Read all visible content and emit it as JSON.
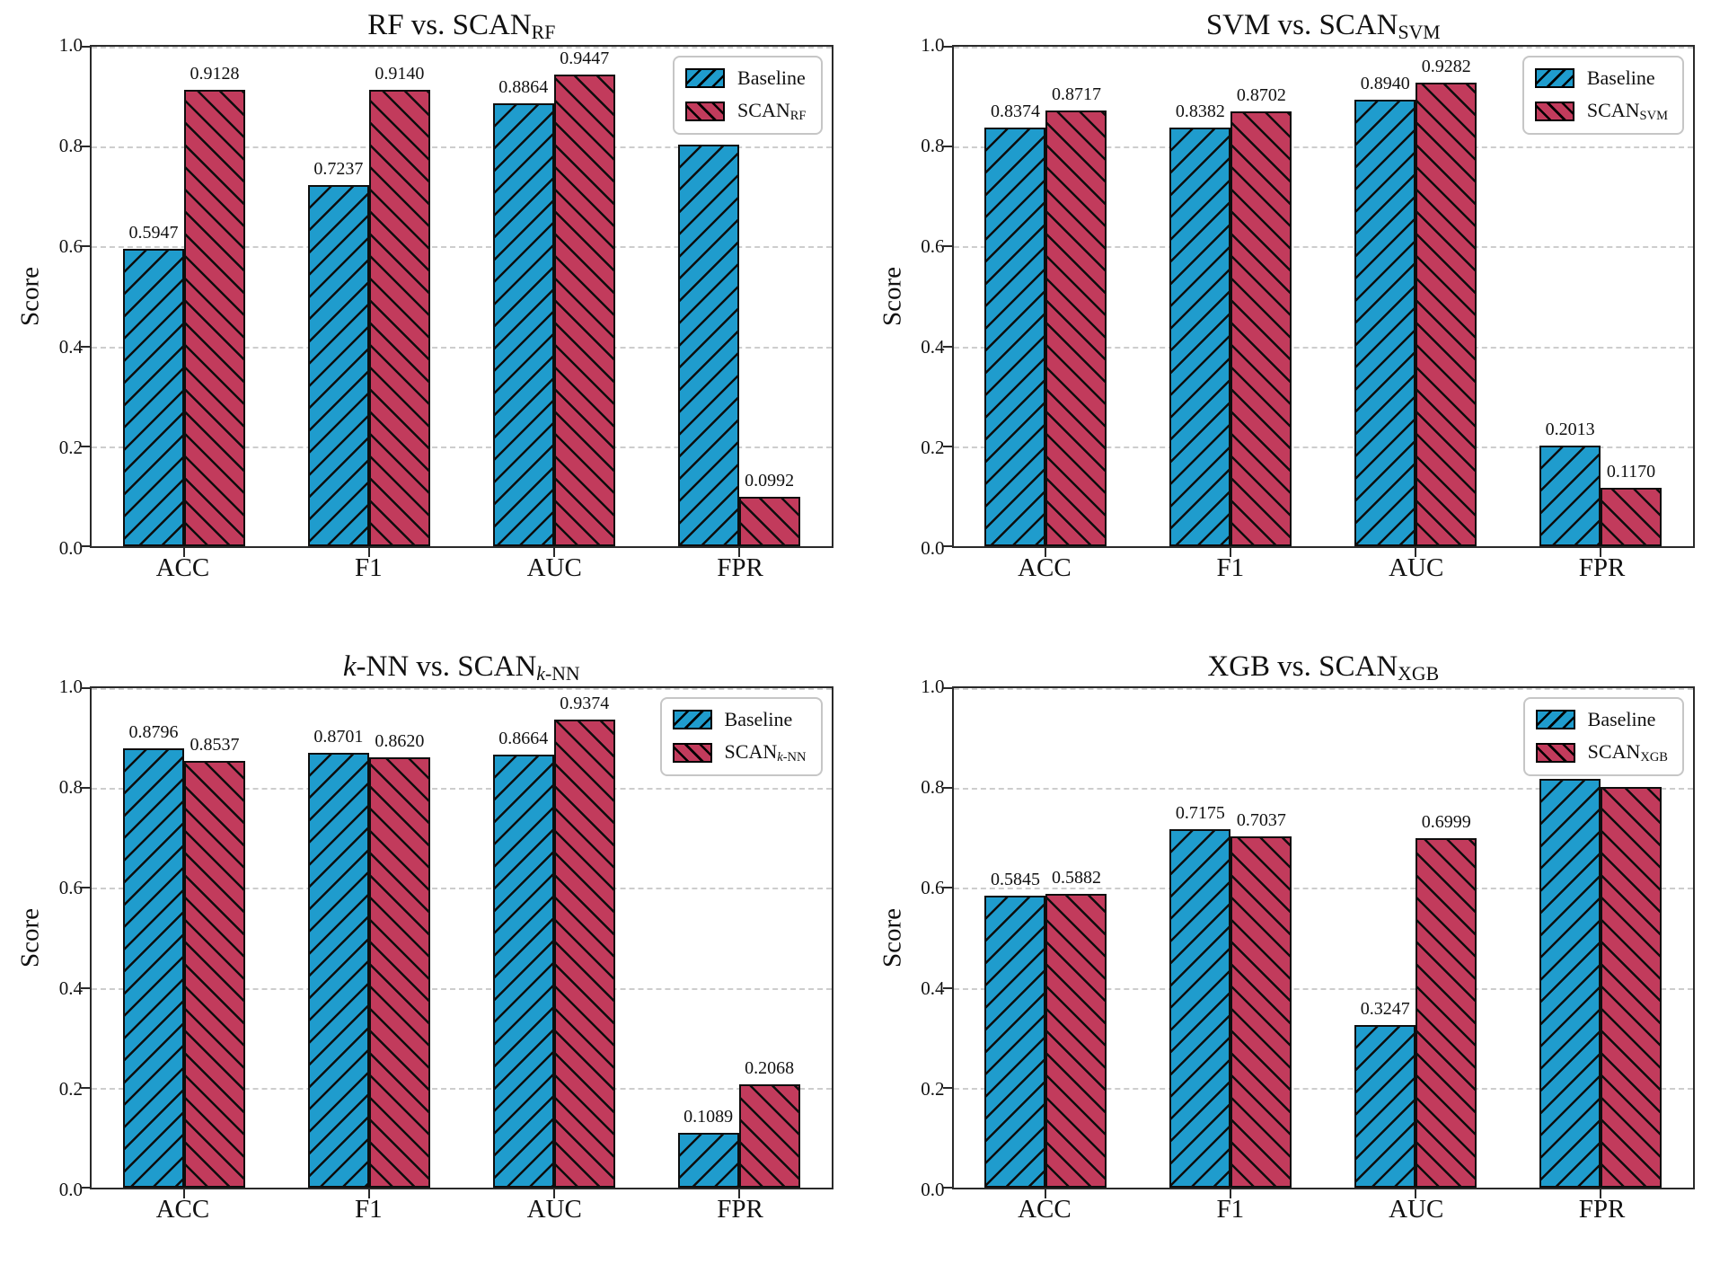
{
  "page": {
    "background": "#ffffff"
  },
  "colors": {
    "baseline_fill": "#1F9CCD",
    "scan_fill": "#C23B5C",
    "hatch": "#0d0d0d",
    "bar_edge": "#0e0e0e",
    "grid": "#cdcdcd",
    "spine": "#2a2a2a",
    "legend_border": "#c6c6c6"
  },
  "axis": {
    "ylabel": "Score",
    "yticks": [
      "0.0",
      "0.2",
      "0.4",
      "0.6",
      "0.8",
      "1.0"
    ],
    "grid_values": [
      0.2,
      0.4,
      0.6,
      0.8,
      1.0
    ],
    "ylim": [
      0,
      1
    ]
  },
  "chart_data": [
    {
      "id": "rf",
      "type": "bar",
      "title_tokens": [
        {
          "t": "RF vs. SCAN",
          "style": "normal"
        },
        {
          "t": "RF",
          "style": "sub"
        }
      ],
      "xlabel": "",
      "ylabel": "Score",
      "ylim": [
        0,
        1
      ],
      "grid": true,
      "legend_position": "top-right",
      "categories": [
        "ACC",
        "F1",
        "AUC",
        "FPR"
      ],
      "series": [
        {
          "name": "Baseline",
          "color_key": "baseline",
          "hatch": "/",
          "values": [
            0.5947,
            0.7237,
            0.8864,
            0.8037
          ],
          "labels": [
            "0.5947",
            "0.7237",
            "0.8864",
            "0.8037"
          ]
        },
        {
          "name": "SCAN_RF",
          "color_key": "scan",
          "hatch": "\\",
          "values": [
            0.9128,
            0.914,
            0.9447,
            0.0992
          ],
          "labels": [
            "0.9128",
            "0.9140",
            "0.9447",
            "0.0992"
          ]
        }
      ],
      "legend": [
        {
          "tokens": [
            {
              "t": "Baseline",
              "style": "normal"
            }
          ],
          "color_key": "baseline",
          "hatch": "/"
        },
        {
          "tokens": [
            {
              "t": "SCAN",
              "style": "normal"
            },
            {
              "t": "RF",
              "style": "sub"
            }
          ],
          "color_key": "scan",
          "hatch": "\\"
        }
      ]
    },
    {
      "id": "svm",
      "type": "bar",
      "title_tokens": [
        {
          "t": "SVM vs. SCAN",
          "style": "normal"
        },
        {
          "t": "SVM",
          "style": "sub"
        }
      ],
      "xlabel": "",
      "ylabel": "Score",
      "ylim": [
        0,
        1
      ],
      "grid": true,
      "legend_position": "top-right",
      "categories": [
        "ACC",
        "F1",
        "AUC",
        "FPR"
      ],
      "series": [
        {
          "name": "Baseline",
          "color_key": "baseline",
          "hatch": "/",
          "values": [
            0.8374,
            0.8382,
            0.894,
            0.2013
          ],
          "labels": [
            "0.8374",
            "0.8382",
            "0.8940",
            "0.2013"
          ]
        },
        {
          "name": "SCAN_SVM",
          "color_key": "scan",
          "hatch": "\\",
          "values": [
            0.8717,
            0.8702,
            0.9282,
            0.117
          ],
          "labels": [
            "0.8717",
            "0.8702",
            "0.9282",
            "0.1170"
          ]
        }
      ],
      "legend": [
        {
          "tokens": [
            {
              "t": "Baseline",
              "style": "normal"
            }
          ],
          "color_key": "baseline",
          "hatch": "/"
        },
        {
          "tokens": [
            {
              "t": "SCAN",
              "style": "normal"
            },
            {
              "t": "SVM",
              "style": "sub"
            }
          ],
          "color_key": "scan",
          "hatch": "\\"
        }
      ]
    },
    {
      "id": "knn",
      "type": "bar",
      "title_tokens": [
        {
          "t": "k",
          "style": "italic"
        },
        {
          "t": "-NN vs. SCAN",
          "style": "normal"
        },
        {
          "t": "k",
          "style": "sub-italic"
        },
        {
          "t": "-NN",
          "style": "sub"
        }
      ],
      "xlabel": "",
      "ylabel": "Score",
      "ylim": [
        0,
        1
      ],
      "grid": true,
      "legend_position": "top-right",
      "categories": [
        "ACC",
        "F1",
        "AUC",
        "FPR"
      ],
      "series": [
        {
          "name": "Baseline",
          "color_key": "baseline",
          "hatch": "/",
          "values": [
            0.8796,
            0.8701,
            0.8664,
            0.1089
          ],
          "labels": [
            "0.8796",
            "0.8701",
            "0.8664",
            "0.1089"
          ]
        },
        {
          "name": "SCAN_k-NN",
          "color_key": "scan",
          "hatch": "\\",
          "values": [
            0.8537,
            0.862,
            0.9374,
            0.2068
          ],
          "labels": [
            "0.8537",
            "0.8620",
            "0.9374",
            "0.2068"
          ]
        }
      ],
      "legend": [
        {
          "tokens": [
            {
              "t": "Baseline",
              "style": "normal"
            }
          ],
          "color_key": "baseline",
          "hatch": "/"
        },
        {
          "tokens": [
            {
              "t": "SCAN",
              "style": "normal"
            },
            {
              "t": "k",
              "style": "sub-italic"
            },
            {
              "t": "-NN",
              "style": "sub"
            }
          ],
          "color_key": "scan",
          "hatch": "\\"
        }
      ]
    },
    {
      "id": "xgb",
      "type": "bar",
      "title_tokens": [
        {
          "t": "XGB vs. SCAN",
          "style": "normal"
        },
        {
          "t": "XGB",
          "style": "sub"
        }
      ],
      "xlabel": "",
      "ylabel": "Score",
      "ylim": [
        0,
        1
      ],
      "grid": true,
      "legend_position": "top-right",
      "categories": [
        "ACC",
        "F1",
        "AUC",
        "FPR"
      ],
      "series": [
        {
          "name": "Baseline",
          "color_key": "baseline",
          "hatch": "/",
          "values": [
            0.5845,
            0.7175,
            0.3247,
            0.8185
          ],
          "labels": [
            "0.5845",
            "0.7175",
            "0.3247",
            "0.8185"
          ]
        },
        {
          "name": "SCAN_XGB",
          "color_key": "scan",
          "hatch": "\\",
          "values": [
            0.5882,
            0.7037,
            0.6999,
            0.8015
          ],
          "labels": [
            "0.5882",
            "0.7037",
            "0.6999",
            "0.8015"
          ]
        }
      ],
      "legend": [
        {
          "tokens": [
            {
              "t": "Baseline",
              "style": "normal"
            }
          ],
          "color_key": "baseline",
          "hatch": "/"
        },
        {
          "tokens": [
            {
              "t": "SCAN",
              "style": "normal"
            },
            {
              "t": "XGB",
              "style": "sub"
            }
          ],
          "color_key": "scan",
          "hatch": "\\"
        }
      ]
    }
  ]
}
